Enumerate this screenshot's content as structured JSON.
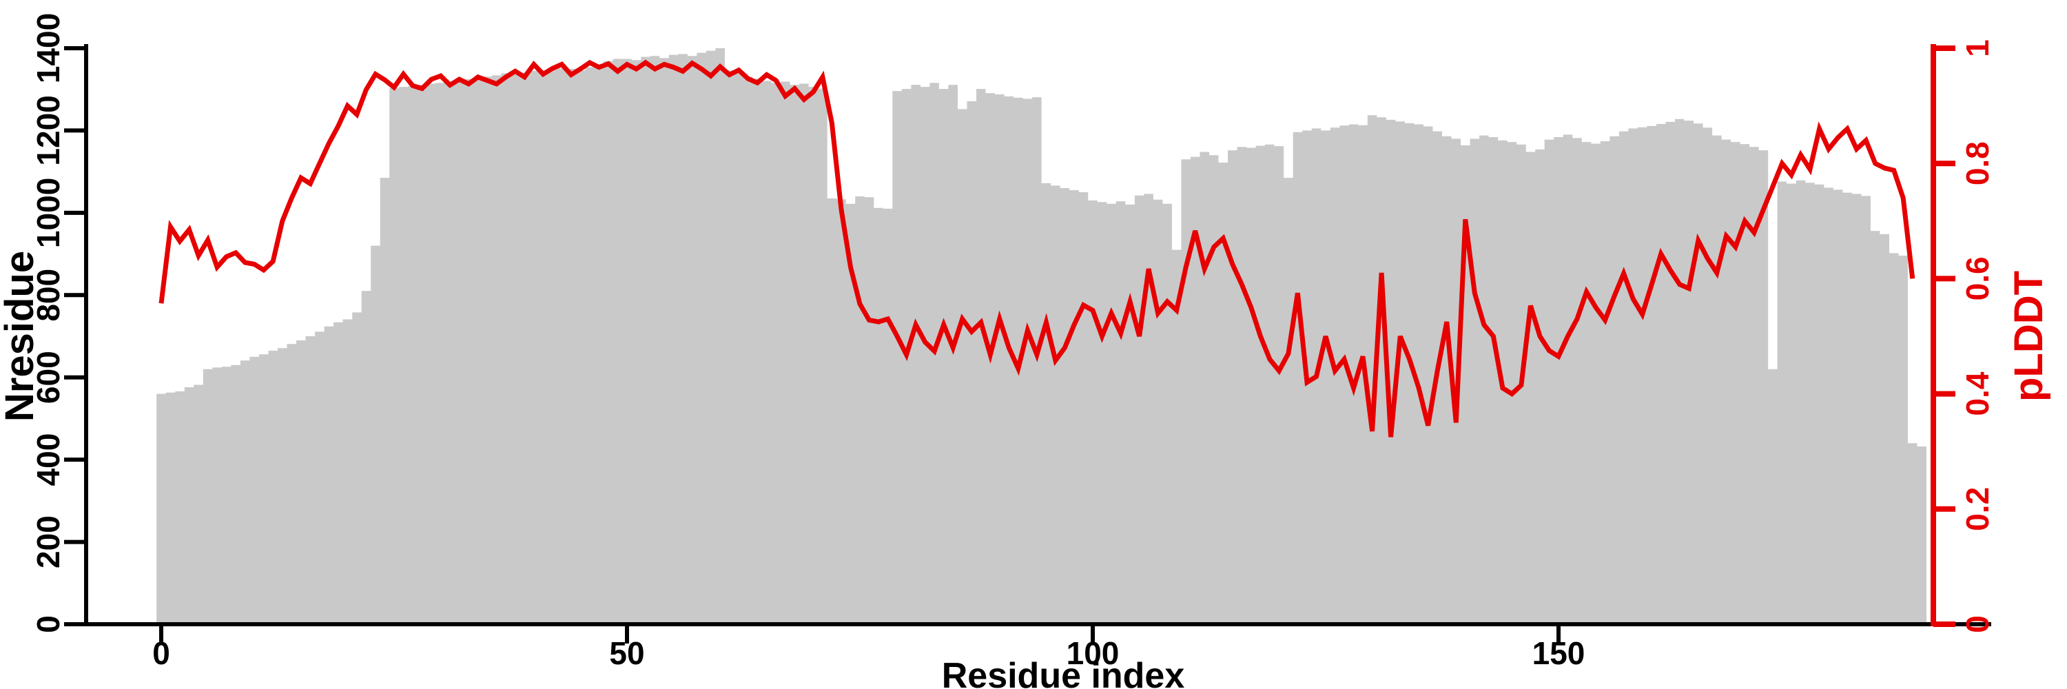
{
  "chart_data": {
    "type": "bar",
    "title": "",
    "xlabel": "Residue index",
    "x_ticks": [
      0,
      50,
      100,
      150
    ],
    "x_range": [
      0,
      190
    ],
    "grid": false,
    "legend": "none",
    "left_axis": {
      "label": "Nresidue",
      "color": "#000000",
      "range": [
        0,
        1400
      ],
      "ticks": [
        0,
        200,
        400,
        600,
        800,
        1000,
        1200,
        1400
      ]
    },
    "right_axis": {
      "label": "pLDDT",
      "color": "#e60000",
      "range": [
        0,
        1
      ],
      "ticks": [
        0,
        0.2,
        0.4,
        0.6,
        0.8,
        1
      ]
    },
    "series": [
      {
        "name": "Nresidue",
        "type": "bar",
        "color": "#c9c9c9",
        "axis": "left",
        "x_start": 0,
        "x_step": 1,
        "values": [
          560,
          563,
          566,
          576,
          582,
          620,
          624,
          626,
          630,
          641,
          650,
          656,
          665,
          671,
          681,
          690,
          700,
          711,
          724,
          734,
          741,
          758,
          810,
          920,
          1085,
          1303,
          1306,
          1308,
          1311,
          1314,
          1316,
          1319,
          1322,
          1325,
          1329,
          1331,
          1334,
          1339,
          1336,
          1341,
          1345,
          1346,
          1349,
          1351,
          1350,
          1346,
          1354,
          1360,
          1369,
          1374,
          1374,
          1371,
          1379,
          1381,
          1376,
          1384,
          1386,
          1381,
          1389,
          1394,
          1400,
          1346,
          1341,
          1331,
          1326,
          1321,
          1316,
          1319,
          1311,
          1314,
          1306,
          1302,
          1035,
          1033,
          1022,
          1040,
          1038,
          1012,
          1010,
          1296,
          1301,
          1311,
          1306,
          1316,
          1301,
          1311,
          1252,
          1271,
          1301,
          1291,
          1288,
          1283,
          1280,
          1277,
          1281,
          1072,
          1066,
          1060,
          1055,
          1050,
          1030,
          1026,
          1022,
          1028,
          1020,
          1042,
          1046,
          1032,
          1022,
          910,
          1130,
          1136,
          1148,
          1140,
          1122,
          1152,
          1160,
          1158,
          1163,
          1166,
          1162,
          1085,
          1196,
          1200,
          1205,
          1200,
          1207,
          1212,
          1215,
          1213,
          1237,
          1232,
          1226,
          1222,
          1218,
          1215,
          1210,
          1198,
          1186,
          1180,
          1164,
          1180,
          1188,
          1184,
          1176,
          1172,
          1166,
          1148,
          1154,
          1178,
          1184,
          1190,
          1182,
          1172,
          1168,
          1174,
          1186,
          1198,
          1205,
          1208,
          1211,
          1216,
          1221,
          1228,
          1224,
          1217,
          1207,
          1188,
          1178,
          1172,
          1167,
          1160,
          1152,
          620,
          1076,
          1071,
          1079,
          1073,
          1069,
          1061,
          1056,
          1049,
          1046,
          1041,
          956,
          948,
          902,
          896,
          440,
          432
        ]
      },
      {
        "name": "pLDDT",
        "type": "line",
        "color": "#e60000",
        "axis": "right",
        "points": [
          [
            0,
            0.557
          ],
          [
            1,
            0.69
          ],
          [
            2,
            0.665
          ],
          [
            3,
            0.685
          ],
          [
            4,
            0.64
          ],
          [
            5,
            0.667
          ],
          [
            6,
            0.62
          ],
          [
            7,
            0.638
          ],
          [
            8,
            0.645
          ],
          [
            9,
            0.628
          ],
          [
            10,
            0.625
          ],
          [
            11,
            0.615
          ],
          [
            12,
            0.63
          ],
          [
            13,
            0.7
          ],
          [
            14,
            0.74
          ],
          [
            15,
            0.775
          ],
          [
            16,
            0.765
          ],
          [
            17,
            0.8
          ],
          [
            18,
            0.835
          ],
          [
            19,
            0.865
          ],
          [
            20,
            0.9
          ],
          [
            21,
            0.885
          ],
          [
            22,
            0.928
          ],
          [
            23,
            0.955
          ],
          [
            24,
            0.945
          ],
          [
            25,
            0.932
          ],
          [
            26,
            0.955
          ],
          [
            27,
            0.935
          ],
          [
            28,
            0.93
          ],
          [
            29,
            0.946
          ],
          [
            30,
            0.952
          ],
          [
            31,
            0.936
          ],
          [
            32,
            0.946
          ],
          [
            33,
            0.938
          ],
          [
            34,
            0.95
          ],
          [
            35,
            0.944
          ],
          [
            36,
            0.938
          ],
          [
            37,
            0.95
          ],
          [
            38,
            0.96
          ],
          [
            39,
            0.95
          ],
          [
            40,
            0.972
          ],
          [
            41,
            0.955
          ],
          [
            42,
            0.965
          ],
          [
            43,
            0.972
          ],
          [
            44,
            0.954
          ],
          [
            45,
            0.964
          ],
          [
            46,
            0.975
          ],
          [
            47,
            0.967
          ],
          [
            48,
            0.973
          ],
          [
            49,
            0.96
          ],
          [
            50,
            0.972
          ],
          [
            51,
            0.964
          ],
          [
            52,
            0.975
          ],
          [
            53,
            0.964
          ],
          [
            54,
            0.972
          ],
          [
            55,
            0.967
          ],
          [
            56,
            0.96
          ],
          [
            57,
            0.974
          ],
          [
            58,
            0.964
          ],
          [
            59,
            0.952
          ],
          [
            60,
            0.968
          ],
          [
            61,
            0.954
          ],
          [
            62,
            0.962
          ],
          [
            63,
            0.947
          ],
          [
            64,
            0.94
          ],
          [
            65,
            0.954
          ],
          [
            66,
            0.944
          ],
          [
            67,
            0.917
          ],
          [
            68,
            0.93
          ],
          [
            69,
            0.911
          ],
          [
            70,
            0.924
          ],
          [
            71,
            0.95
          ],
          [
            72,
            0.87
          ],
          [
            73,
            0.72
          ],
          [
            74,
            0.62
          ],
          [
            75,
            0.556
          ],
          [
            76,
            0.528
          ],
          [
            77,
            0.525
          ],
          [
            78,
            0.53
          ],
          [
            79,
            0.5
          ],
          [
            80,
            0.468
          ],
          [
            81,
            0.52
          ],
          [
            82,
            0.49
          ],
          [
            83,
            0.474
          ],
          [
            84,
            0.52
          ],
          [
            85,
            0.48
          ],
          [
            86,
            0.53
          ],
          [
            87,
            0.508
          ],
          [
            88,
            0.524
          ],
          [
            89,
            0.468
          ],
          [
            90,
            0.53
          ],
          [
            91,
            0.48
          ],
          [
            92,
            0.444
          ],
          [
            93,
            0.51
          ],
          [
            94,
            0.468
          ],
          [
            95,
            0.524
          ],
          [
            96,
            0.458
          ],
          [
            97,
            0.48
          ],
          [
            98,
            0.52
          ],
          [
            99,
            0.554
          ],
          [
            100,
            0.545
          ],
          [
            101,
            0.5
          ],
          [
            102,
            0.54
          ],
          [
            103,
            0.505
          ],
          [
            104,
            0.56
          ],
          [
            105,
            0.5
          ],
          [
            106,
            0.617
          ],
          [
            107,
            0.54
          ],
          [
            108,
            0.56
          ],
          [
            109,
            0.545
          ],
          [
            110,
            0.62
          ],
          [
            111,
            0.683
          ],
          [
            112,
            0.617
          ],
          [
            113,
            0.655
          ],
          [
            114,
            0.67
          ],
          [
            115,
            0.625
          ],
          [
            116,
            0.59
          ],
          [
            117,
            0.55
          ],
          [
            118,
            0.5
          ],
          [
            119,
            0.46
          ],
          [
            120,
            0.44
          ],
          [
            121,
            0.47
          ],
          [
            122,
            0.575
          ],
          [
            123,
            0.42
          ],
          [
            124,
            0.43
          ],
          [
            125,
            0.5
          ],
          [
            126,
            0.44
          ],
          [
            127,
            0.46
          ],
          [
            128,
            0.41
          ],
          [
            129,
            0.465
          ],
          [
            130,
            0.335
          ],
          [
            131,
            0.61
          ],
          [
            132,
            0.325
          ],
          [
            133,
            0.5
          ],
          [
            134,
            0.46
          ],
          [
            135,
            0.41
          ],
          [
            136,
            0.345
          ],
          [
            137,
            0.44
          ],
          [
            138,
            0.525
          ],
          [
            139,
            0.35
          ],
          [
            140,
            0.703
          ],
          [
            141,
            0.575
          ],
          [
            142,
            0.52
          ],
          [
            143,
            0.5
          ],
          [
            144,
            0.41
          ],
          [
            145,
            0.4
          ],
          [
            146,
            0.415
          ],
          [
            147,
            0.553
          ],
          [
            148,
            0.5
          ],
          [
            149,
            0.475
          ],
          [
            150,
            0.465
          ],
          [
            151,
            0.5
          ],
          [
            152,
            0.53
          ],
          [
            153,
            0.577
          ],
          [
            154,
            0.55
          ],
          [
            155,
            0.528
          ],
          [
            156,
            0.57
          ],
          [
            157,
            0.609
          ],
          [
            158,
            0.565
          ],
          [
            159,
            0.538
          ],
          [
            160,
            0.59
          ],
          [
            161,
            0.643
          ],
          [
            162,
            0.615
          ],
          [
            163,
            0.59
          ],
          [
            164,
            0.583
          ],
          [
            165,
            0.666
          ],
          [
            166,
            0.635
          ],
          [
            167,
            0.61
          ],
          [
            168,
            0.674
          ],
          [
            169,
            0.655
          ],
          [
            170,
            0.7
          ],
          [
            171,
            0.68
          ],
          [
            172,
            0.72
          ],
          [
            173,
            0.76
          ],
          [
            174,
            0.8
          ],
          [
            175,
            0.78
          ],
          [
            176,
            0.815
          ],
          [
            177,
            0.79
          ],
          [
            178,
            0.86
          ],
          [
            179,
            0.825
          ],
          [
            180,
            0.845
          ],
          [
            181,
            0.86
          ],
          [
            182,
            0.825
          ],
          [
            183,
            0.84
          ],
          [
            184,
            0.8
          ],
          [
            185,
            0.792
          ],
          [
            186,
            0.788
          ],
          [
            187,
            0.74
          ],
          [
            188,
            0.6
          ]
        ]
      }
    ]
  }
}
